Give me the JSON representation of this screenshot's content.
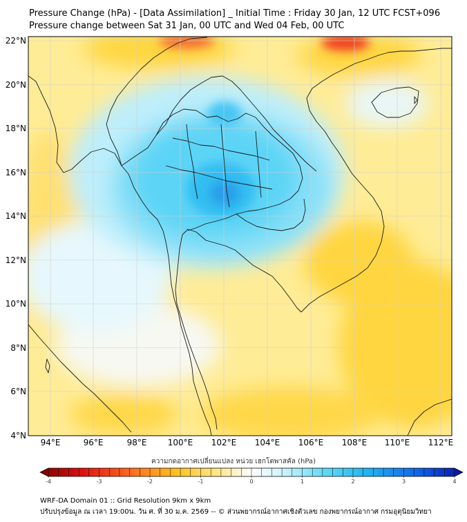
{
  "titles": {
    "line1": "Pressure Change (hPa) - [Data Assimilation] _ Initial Time : Friday 30 Jan, 12 UTC FCST+096",
    "line2": "Pressure change between Sat 31 Jan, 00 UTC and Wed 04 Feb, 00 UTC"
  },
  "map": {
    "lat_ticks": [
      "22°N",
      "20°N",
      "18°N",
      "16°N",
      "14°N",
      "12°N",
      "10°N",
      "8°N",
      "6°N",
      "4°N"
    ],
    "lon_ticks": [
      "94°E",
      "96°E",
      "98°E",
      "100°E",
      "102°E",
      "104°E",
      "106°E",
      "108°E",
      "110°E",
      "112°E"
    ],
    "lat_range": [
      4,
      22.2
    ],
    "lon_range": [
      93,
      112.8
    ],
    "colors": {
      "background": "#ffe98a",
      "strong_negative": "#ffd23a",
      "positive_light": "#b8ecfb",
      "positive": "#52d3f5",
      "positive_strong": "#2ab2ee",
      "red": "#f04020",
      "land_outline": "#1a1a1a"
    }
  },
  "colorbar": {
    "title": "ความกดอากาศเปลี่ยนแปลง หน่วย เฮกโตพาสคัล (hPa)",
    "ticks": [
      "-4",
      "-3",
      "-2",
      "-1",
      "0",
      "1",
      "2",
      "3",
      "4"
    ],
    "range": [
      -4,
      4
    ]
  },
  "footer": {
    "line1": "WRF-DA Domain 01 :: Grid Resolution 9km x 9km",
    "line2": "ปรับปรุงข้อมูล ณ เวลา 19:00น. วัน ศ. ที่ 30 ม.ค. 2569 -- © ส่วนพยากรณ์อากาศเชิงตัวเลข กองพยากรณ์อากาศ กรมอุตุนิยมวิทยา"
  }
}
